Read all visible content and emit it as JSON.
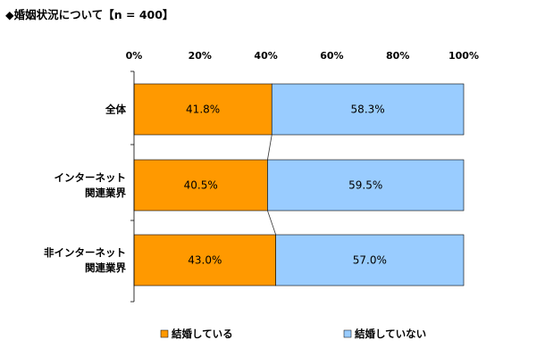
{
  "chart_data": {
    "type": "bar",
    "orientation": "horizontal",
    "stacked": true,
    "percent_stacked": true,
    "title": "◆婚姻状況について【n = 400】",
    "xlim": [
      0,
      100
    ],
    "x_ticks": [
      "0%",
      "20%",
      "40%",
      "60%",
      "80%",
      "100%"
    ],
    "categories": [
      [
        "全体"
      ],
      [
        "インターネット",
        "関連業界"
      ],
      [
        "非インターネット",
        "関連業界"
      ]
    ],
    "series": [
      {
        "name": "結婚している",
        "color": "#FF9900",
        "values": [
          41.8,
          40.5,
          43.0
        ],
        "labels": [
          "41.8%",
          "40.5%",
          "43.0%"
        ]
      },
      {
        "name": "結婚していない",
        "color": "#99CCFF",
        "values": [
          58.3,
          59.5,
          57.0
        ],
        "labels": [
          "58.3%",
          "59.5%",
          "57.0%"
        ]
      }
    ],
    "legend_position": "bottom",
    "grid": false,
    "series_lines": true
  }
}
